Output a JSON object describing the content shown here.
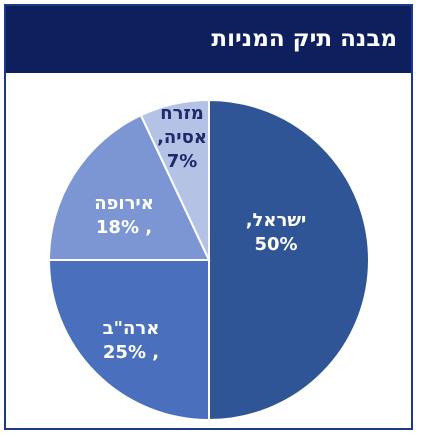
{
  "chart_data": {
    "type": "pie",
    "title": "מבנה תיק המניות",
    "slices": [
      {
        "label": "ישראל,",
        "value": 50,
        "value_label": "50%",
        "color": "#2f5597",
        "text_color": "#ffffff"
      },
      {
        "label": "ארה\"ב",
        "value": 25,
        "value_label": "25% ,",
        "color": "#4a6fbc",
        "text_color": "#ffffff"
      },
      {
        "label": "אירופה",
        "value": 18,
        "value_label": "18% ,",
        "color": "#7b96d2",
        "text_color": "#ffffff"
      },
      {
        "label": "מזרח אסיה,",
        "value": 7,
        "value_label": "7%",
        "label_lines": [
          "מזרח",
          "אסיה,"
        ],
        "color": "#b4c2e6",
        "text_color": "#1f2a6b"
      }
    ],
    "start_angle": "12 o'clock",
    "direction": "clockwise"
  },
  "colors": {
    "title_bar": "#0d1f5c",
    "frame_border": "#1c3a8c",
    "title_text": "#ffffff"
  }
}
